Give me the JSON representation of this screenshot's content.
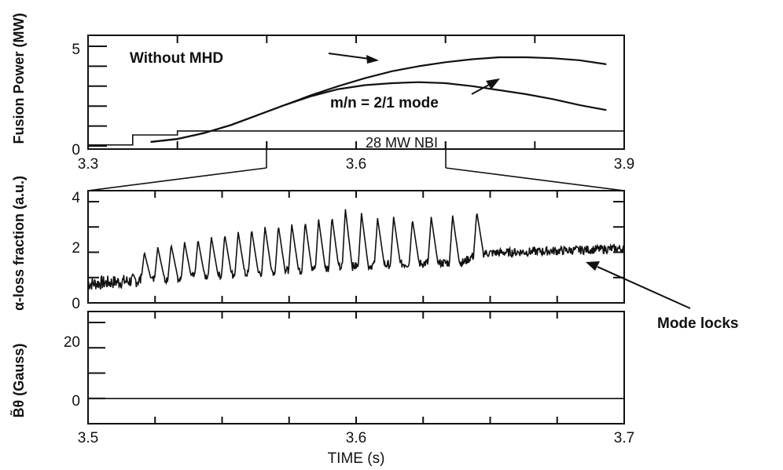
{
  "chart_data": [
    {
      "type": "line",
      "ylabel": "Fusion Power (MW)",
      "xlim": [
        3.3,
        3.9
      ],
      "ylim": [
        0,
        5
      ],
      "xticks": [
        "3.3",
        "3.6",
        "3.9"
      ],
      "yticks": [
        "0",
        "5"
      ],
      "annotations": [
        "Without MHD",
        "m/n = 2/1 mode",
        "28 MW NBI"
      ],
      "series": [
        {
          "name": "Without MHD",
          "x": [
            3.37,
            3.4,
            3.43,
            3.46,
            3.49,
            3.52,
            3.55,
            3.58,
            3.61,
            3.64,
            3.67,
            3.7,
            3.73,
            3.76,
            3.79,
            3.82,
            3.85,
            3.88
          ],
          "y": [
            0.2,
            0.35,
            0.65,
            1.05,
            1.55,
            2.05,
            2.55,
            3.0,
            3.4,
            3.75,
            4.0,
            4.2,
            4.35,
            4.45,
            4.45,
            4.4,
            4.3,
            4.1
          ]
        },
        {
          "name": "m/n = 2/1 mode",
          "x": [
            3.37,
            3.4,
            3.43,
            3.46,
            3.49,
            3.52,
            3.55,
            3.58,
            3.61,
            3.64,
            3.67,
            3.7,
            3.73,
            3.76,
            3.79,
            3.82,
            3.85,
            3.88
          ],
          "y": [
            0.2,
            0.35,
            0.65,
            1.05,
            1.55,
            2.05,
            2.5,
            2.85,
            3.05,
            3.15,
            3.2,
            3.15,
            3.0,
            2.8,
            2.6,
            2.35,
            2.05,
            1.8
          ]
        },
        {
          "name": "28 MW NBI",
          "x": [
            3.3,
            3.35,
            3.35,
            3.4,
            3.4,
            3.9
          ],
          "y": [
            0.05,
            0.05,
            0.55,
            0.55,
            0.75,
            0.75
          ]
        }
      ],
      "zoom_range": [
        3.5,
        3.7
      ]
    },
    {
      "type": "line",
      "ylabel": "α-loss fraction (a.u.)",
      "xlim": [
        3.5,
        3.7
      ],
      "ylim": [
        0,
        4
      ],
      "yticks": [
        "0",
        "2",
        "4"
      ],
      "annotations": [
        "Mode locks"
      ],
      "series": [
        {
          "name": "α-loss fraction",
          "baseline": {
            "x": [
              3.5,
              3.52,
              3.55,
              3.58,
              3.6,
              3.62,
              3.64,
              3.645,
              3.7
            ],
            "y": [
              0.75,
              0.9,
              1.1,
              1.3,
              1.45,
              1.55,
              1.6,
              1.95,
              2.15
            ]
          },
          "spike_times": [
            3.521,
            3.526,
            3.531,
            3.536,
            3.541,
            3.546,
            3.551,
            3.556,
            3.561,
            3.566,
            3.571,
            3.576,
            3.581,
            3.586,
            3.591,
            3.596,
            3.602,
            3.608,
            3.614,
            3.621,
            3.628,
            3.636,
            3.645
          ],
          "spike_peaks": [
            2.0,
            2.2,
            2.3,
            2.4,
            2.5,
            2.6,
            2.7,
            2.8,
            2.9,
            3.0,
            3.05,
            3.1,
            3.2,
            3.3,
            3.4,
            3.7,
            3.55,
            3.35,
            3.4,
            3.3,
            3.4,
            3.45,
            3.6
          ]
        }
      ]
    },
    {
      "type": "line",
      "ylabel": "B̃θ (Gauss)",
      "xlabel": "TIME (s)",
      "xlim": [
        3.5,
        3.7
      ],
      "ylim": [
        -10,
        30
      ],
      "xticks": [
        "3.5",
        "3.6",
        "3.7"
      ],
      "yticks": [
        "0",
        "20"
      ],
      "series": [
        {
          "name": "B̃θ",
          "x": [
            3.5,
            3.7
          ],
          "y": [
            0,
            0
          ]
        }
      ]
    }
  ]
}
